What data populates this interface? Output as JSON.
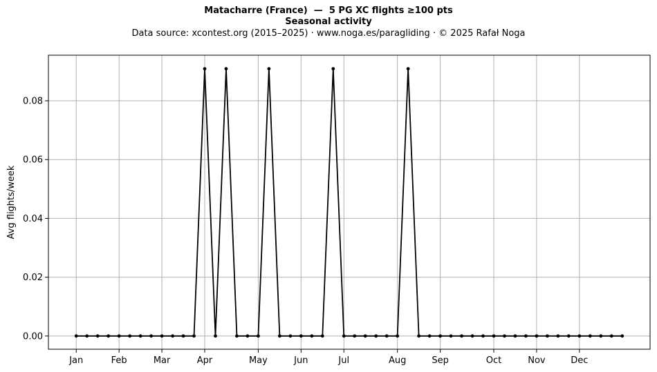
{
  "chart_data": {
    "type": "line",
    "title": "Matacharre (France)  —  5 PG XC flights ≥100 pts",
    "subtitle": "Seasonal activity",
    "source_line": "Data source: xcontest.org (2015–2025)  ·  www.noga.es/paragliding  ·  © 2025 Rafał Noga",
    "xlabel": "",
    "ylabel": "Avg flights/week",
    "x_ticks": [
      {
        "label": "Jan",
        "week": 1
      },
      {
        "label": "Feb",
        "week": 5
      },
      {
        "label": "Mar",
        "week": 9
      },
      {
        "label": "Apr",
        "week": 13
      },
      {
        "label": "May",
        "week": 18
      },
      {
        "label": "Jun",
        "week": 22
      },
      {
        "label": "Jul",
        "week": 26
      },
      {
        "label": "Aug",
        "week": 31
      },
      {
        "label": "Sep",
        "week": 35
      },
      {
        "label": "Oct",
        "week": 40
      },
      {
        "label": "Nov",
        "week": 44
      },
      {
        "label": "Dec",
        "week": 48
      }
    ],
    "y_ticks": [
      "0.00",
      "0.02",
      "0.04",
      "0.06",
      "0.08"
    ],
    "ylim": [
      -0.0045,
      0.0955
    ],
    "xlim": [
      -1.6,
      54.6
    ],
    "grid": true,
    "series": [
      {
        "color": "#000000",
        "x": [
          1,
          2,
          3,
          4,
          5,
          6,
          7,
          8,
          9,
          10,
          11,
          12,
          13,
          14,
          15,
          16,
          17,
          18,
          19,
          20,
          21,
          22,
          23,
          24,
          25,
          26,
          27,
          28,
          29,
          30,
          31,
          32,
          33,
          34,
          35,
          36,
          37,
          38,
          39,
          40,
          41,
          42,
          43,
          44,
          45,
          46,
          47,
          48,
          49,
          50,
          51,
          52
        ],
        "values": [
          0,
          0,
          0,
          0,
          0,
          0,
          0,
          0,
          0,
          0,
          0,
          0,
          0.0909,
          0,
          0.0909,
          0,
          0,
          0,
          0.0909,
          0,
          0,
          0,
          0,
          0,
          0.0909,
          0,
          0,
          0,
          0,
          0,
          0,
          0.0909,
          0,
          0,
          0,
          0,
          0,
          0,
          0,
          0,
          0,
          0,
          0,
          0,
          0,
          0,
          0,
          0,
          0,
          0,
          0,
          0
        ]
      }
    ]
  }
}
